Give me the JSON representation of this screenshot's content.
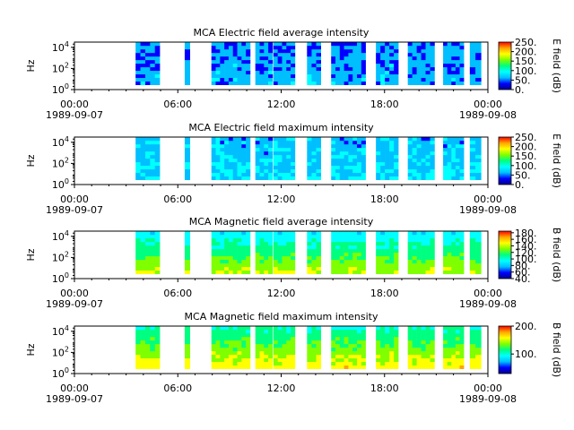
{
  "figure": {
    "x_tick_labels": [
      "00:00",
      "06:00",
      "12:00",
      "18:00",
      "00:00"
    ],
    "x_start_date": "1989-09-07",
    "x_end_date": "1989-09-08"
  },
  "colormap": [
    "#00008b",
    "#0000ff",
    "#00bfff",
    "#00ffff",
    "#00ff80",
    "#7fff00",
    "#ffff00",
    "#ffa500",
    "#ff0000"
  ],
  "chart_data": [
    {
      "type": "heatmap",
      "title": "MCA  Electric field average intensity",
      "ylabel": "Hz",
      "colorbar_label": "E field (dB)",
      "y_scale": "log",
      "y_ticks": [
        "10^0",
        "10^2",
        "10^4"
      ],
      "xlim": [
        "1989-09-07 00:00",
        "1989-09-08 00:00"
      ],
      "ylim": [
        1,
        31000
      ],
      "color_range": [
        0,
        250
      ],
      "colorbar_ticks": [
        "0.",
        "50.",
        "100.",
        "150.",
        "200.",
        "250."
      ],
      "data_intervals_hours": [
        [
          3.55,
          4.95
        ],
        [
          6.4,
          6.7
        ],
        [
          7.95,
          10.2
        ],
        [
          10.5,
          11.5
        ],
        [
          11.55,
          12.8
        ],
        [
          13.5,
          14.3
        ],
        [
          14.9,
          16.9
        ],
        [
          17.5,
          18.8
        ],
        [
          19.35,
          20.9
        ],
        [
          21.4,
          22.6
        ],
        [
          22.95,
          23.6
        ]
      ],
      "typical_level_dB": 70,
      "markers": [
        {
          "label": "x",
          "hour": 3.75
        },
        {
          "label": "x",
          "hour": 4.3
        }
      ]
    },
    {
      "type": "heatmap",
      "title": "MCA  Electric field maximum intensity",
      "ylabel": "Hz",
      "colorbar_label": "E field (dB)",
      "y_scale": "log",
      "y_ticks": [
        "10^0",
        "10^2",
        "10^4"
      ],
      "xlim": [
        "1989-09-07 00:00",
        "1989-09-08 00:00"
      ],
      "ylim": [
        1,
        31000
      ],
      "color_range": [
        0,
        250
      ],
      "colorbar_ticks": [
        "0.",
        "50.",
        "100.",
        "150.",
        "200.",
        "250."
      ],
      "data_intervals_hours": [
        [
          3.55,
          4.95
        ],
        [
          6.4,
          6.7
        ],
        [
          7.95,
          10.2
        ],
        [
          10.5,
          11.5
        ],
        [
          11.55,
          12.8
        ],
        [
          13.5,
          14.3
        ],
        [
          14.9,
          16.9
        ],
        [
          17.5,
          18.8
        ],
        [
          19.35,
          20.9
        ],
        [
          21.4,
          22.6
        ],
        [
          22.95,
          23.6
        ]
      ],
      "typical_level_dB": 85
    },
    {
      "type": "heatmap",
      "title": "MCA  Magnetic field average intensity",
      "ylabel": "Hz",
      "colorbar_label": "B field (dB)",
      "y_scale": "log",
      "y_ticks": [
        "10^0",
        "10^2",
        "10^4"
      ],
      "xlim": [
        "1989-09-07 00:00",
        "1989-09-08 00:00"
      ],
      "ylim": [
        1,
        31000
      ],
      "color_range": [
        40,
        185
      ],
      "colorbar_ticks": [
        "40.",
        "60.",
        "80.",
        "100.",
        "120.",
        "140.",
        "160.",
        "180."
      ],
      "data_intervals_hours": [
        [
          3.55,
          4.95
        ],
        [
          6.4,
          6.7
        ],
        [
          7.95,
          10.2
        ],
        [
          10.5,
          11.5
        ],
        [
          11.55,
          12.8
        ],
        [
          13.5,
          14.3
        ],
        [
          14.9,
          16.9
        ],
        [
          17.5,
          18.8
        ],
        [
          19.35,
          20.9
        ],
        [
          21.4,
          22.6
        ],
        [
          22.95,
          23.6
        ]
      ],
      "typical_level_dB": 105
    },
    {
      "type": "heatmap",
      "title": "MCA  Magnetic field maximum intensity",
      "ylabel": "Hz",
      "colorbar_label": "B field (dB)",
      "y_scale": "log",
      "y_ticks": [
        "10^0",
        "10^2",
        "10^4"
      ],
      "xlim": [
        "1989-09-07 00:00",
        "1989-09-08 00:00"
      ],
      "ylim": [
        1,
        31000
      ],
      "color_range": [
        30,
        200
      ],
      "colorbar_ticks": [
        "100.",
        "200."
      ],
      "data_intervals_hours": [
        [
          3.55,
          4.95
        ],
        [
          6.4,
          6.7
        ],
        [
          7.95,
          10.2
        ],
        [
          10.5,
          11.5
        ],
        [
          11.55,
          12.8
        ],
        [
          13.5,
          14.3
        ],
        [
          14.9,
          16.9
        ],
        [
          17.5,
          18.8
        ],
        [
          19.35,
          20.9
        ],
        [
          21.4,
          22.6
        ],
        [
          22.95,
          23.6
        ]
      ],
      "typical_level_dB": 120
    }
  ]
}
